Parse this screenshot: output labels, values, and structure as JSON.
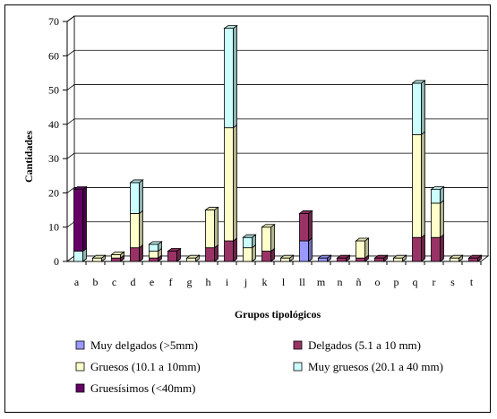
{
  "chart_data": {
    "type": "bar",
    "stacked": true,
    "three_d": true,
    "xlabel": "Grupos tipológicos",
    "ylabel": "Cantidades",
    "ylim": [
      0,
      70
    ],
    "yticks": [
      0,
      10,
      20,
      30,
      40,
      50,
      60,
      70
    ],
    "grid": "horizontal",
    "legend_position": "bottom",
    "categories": [
      "a",
      "b",
      "c",
      "d",
      "e",
      "f",
      "g",
      "h",
      "i",
      "j",
      "k",
      "l",
      "ll",
      "m",
      "n",
      "ñ",
      "o",
      "p",
      "q",
      "r",
      "s",
      "t"
    ],
    "series": [
      {
        "name": "Muy delgados (>5mm)",
        "color": "#9999ff",
        "values": [
          0,
          0,
          0,
          0,
          0,
          0,
          0,
          0,
          0,
          0,
          0,
          0,
          6,
          1,
          0,
          0,
          0,
          0,
          0,
          0,
          0,
          0
        ]
      },
      {
        "name": "Delgados (5.1 a 10 mm)",
        "color": "#993366",
        "values": [
          0,
          0,
          1,
          4,
          1,
          3,
          0,
          4,
          6,
          0,
          3,
          0,
          8,
          0,
          1,
          1,
          1,
          0,
          7,
          7,
          0,
          1
        ]
      },
      {
        "name": "Gruesos (10.1 a 10mm)",
        "color": "#ffffcc",
        "values": [
          0,
          1,
          1,
          10,
          2,
          0,
          1,
          11,
          33,
          4,
          7,
          1,
          0,
          0,
          0,
          5,
          0,
          1,
          30,
          10,
          1,
          0
        ]
      },
      {
        "name": "Muy gruesos (20.1 a 40 mm)",
        "color": "#ccffff",
        "values": [
          3,
          0,
          0,
          9,
          2,
          0,
          0,
          0,
          29,
          3,
          0,
          0,
          0,
          0,
          0,
          0,
          0,
          0,
          15,
          4,
          0,
          0
        ]
      },
      {
        "name": "Gruesísimos (<40mm)",
        "color": "#660066",
        "values": [
          18,
          0,
          0,
          0,
          0,
          0,
          0,
          0,
          0,
          0,
          0,
          0,
          0,
          0,
          0,
          0,
          0,
          0,
          0,
          0,
          0,
          0
        ]
      }
    ]
  }
}
